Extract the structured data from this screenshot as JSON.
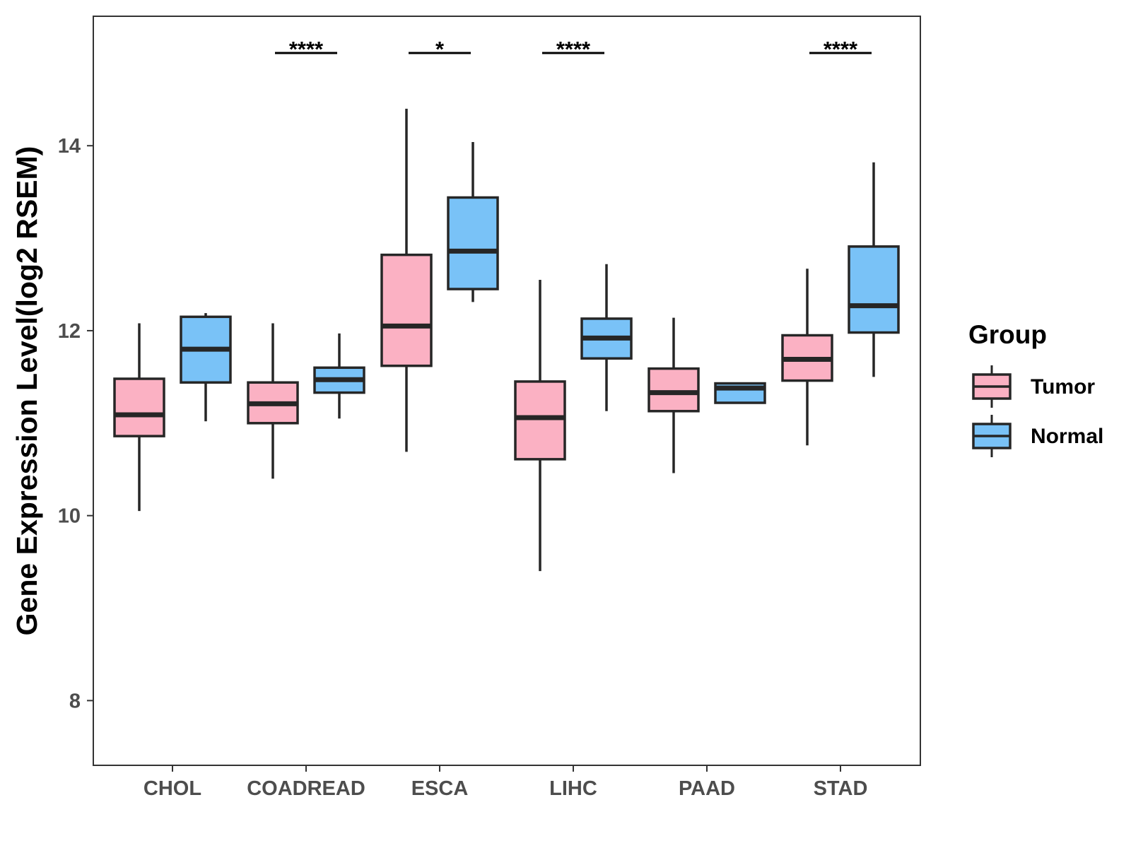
{
  "chart_data": {
    "type": "box",
    "xlabel": "",
    "ylabel": "Gene Expression Level(log2 RSEM)",
    "ylim": [
      7.3,
      15.4
    ],
    "yticks": [
      8,
      10,
      12,
      14
    ],
    "categories": [
      "CHOL",
      "COADREAD",
      "ESCA",
      "LIHC",
      "PAAD",
      "STAD"
    ],
    "grid": false,
    "legend": {
      "title": "Group",
      "position": "right",
      "entries": [
        {
          "name": "Tumor",
          "color": "#FBB1C3"
        },
        {
          "name": "Normal",
          "color": "#79C2F7"
        }
      ]
    },
    "series": [
      {
        "name": "Tumor",
        "color": "#FBB1C3",
        "boxes": [
          {
            "category": "CHOL",
            "min": 10.05,
            "q1": 10.86,
            "median": 11.09,
            "q3": 11.48,
            "max": 12.08
          },
          {
            "category": "COADREAD",
            "min": 10.4,
            "q1": 11.0,
            "median": 11.21,
            "q3": 11.44,
            "max": 12.08
          },
          {
            "category": "ESCA",
            "min": 10.69,
            "q1": 11.62,
            "median": 12.05,
            "q3": 12.82,
            "max": 14.4
          },
          {
            "category": "LIHC",
            "min": 9.4,
            "q1": 10.61,
            "median": 11.06,
            "q3": 11.45,
            "max": 12.55
          },
          {
            "category": "PAAD",
            "min": 10.46,
            "q1": 11.13,
            "median": 11.33,
            "q3": 11.59,
            "max": 12.14
          },
          {
            "category": "STAD",
            "min": 10.76,
            "q1": 11.46,
            "median": 11.69,
            "q3": 11.95,
            "max": 12.67
          }
        ]
      },
      {
        "name": "Normal",
        "color": "#79C2F7",
        "boxes": [
          {
            "category": "CHOL",
            "min": 11.02,
            "q1": 11.44,
            "median": 11.8,
            "q3": 12.15,
            "max": 12.19
          },
          {
            "category": "COADREAD",
            "min": 11.05,
            "q1": 11.33,
            "median": 11.47,
            "q3": 11.6,
            "max": 11.97
          },
          {
            "category": "ESCA",
            "min": 12.31,
            "q1": 12.45,
            "median": 12.86,
            "q3": 13.44,
            "max": 14.04
          },
          {
            "category": "LIHC",
            "min": 11.13,
            "q1": 11.7,
            "median": 11.92,
            "q3": 12.13,
            "max": 12.72
          },
          {
            "category": "PAAD",
            "min": 11.22,
            "q1": 11.22,
            "median": 11.38,
            "q3": 11.43,
            "max": 11.43
          },
          {
            "category": "STAD",
            "min": 11.5,
            "q1": 11.98,
            "median": 12.27,
            "q3": 12.91,
            "max": 13.82
          }
        ]
      }
    ],
    "significance": [
      {
        "category": "CHOL",
        "label": ""
      },
      {
        "category": "COADREAD",
        "label": "****"
      },
      {
        "category": "ESCA",
        "label": "*"
      },
      {
        "category": "LIHC",
        "label": "****"
      },
      {
        "category": "PAAD",
        "label": ""
      },
      {
        "category": "STAD",
        "label": "****"
      }
    ]
  }
}
